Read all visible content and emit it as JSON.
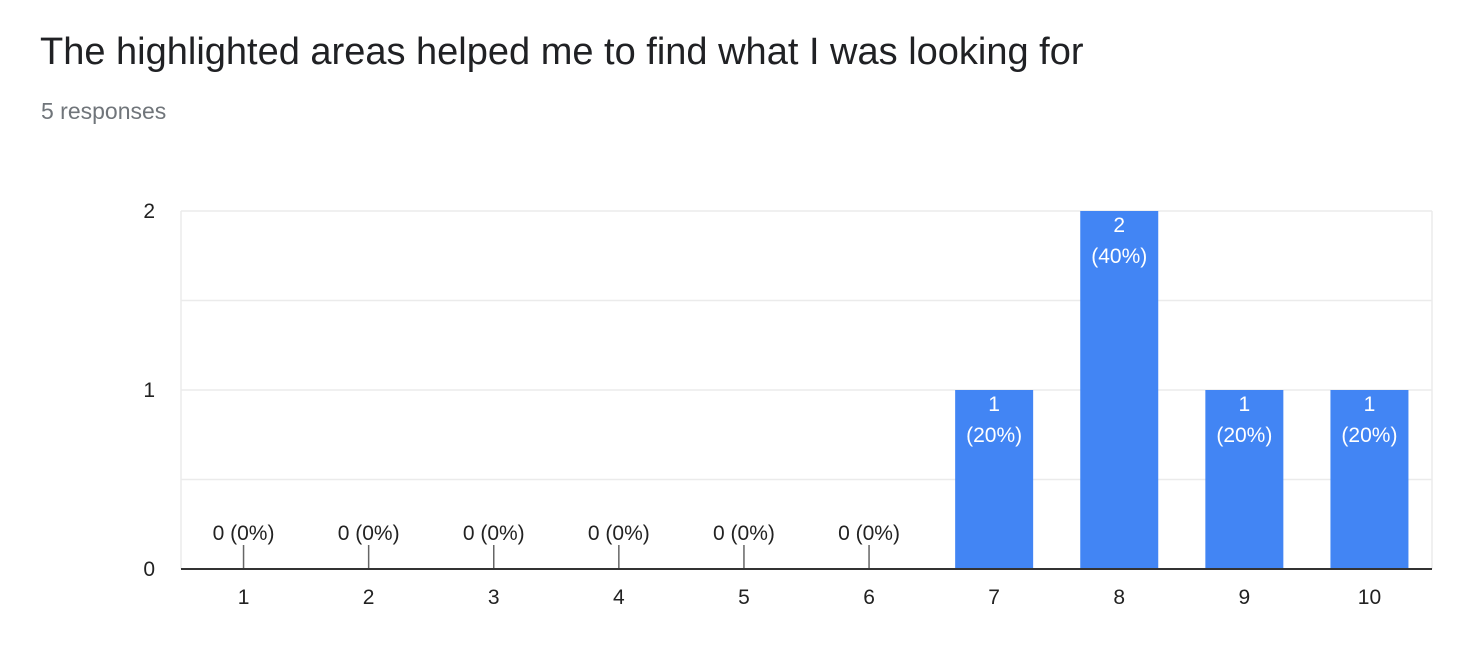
{
  "header": {
    "title": "The highlighted areas helped me to find what I was looking for",
    "responses": "5 responses"
  },
  "colors": {
    "bar": "#4285f4",
    "grid": "#ebebeb",
    "axis": "#333333",
    "label_inside": "#ffffff",
    "label_outside": "#222222"
  },
  "chart_data": {
    "type": "bar",
    "categories": [
      "1",
      "2",
      "3",
      "4",
      "5",
      "6",
      "7",
      "8",
      "9",
      "10"
    ],
    "values": [
      0,
      0,
      0,
      0,
      0,
      0,
      1,
      2,
      1,
      1
    ],
    "percentages": [
      "0%",
      "0%",
      "0%",
      "0%",
      "0%",
      "0%",
      "20%",
      "40%",
      "20%",
      "20%"
    ],
    "yticks": [
      0,
      1,
      2
    ],
    "ylim": [
      0,
      2
    ],
    "grid": true,
    "legend": "none"
  }
}
